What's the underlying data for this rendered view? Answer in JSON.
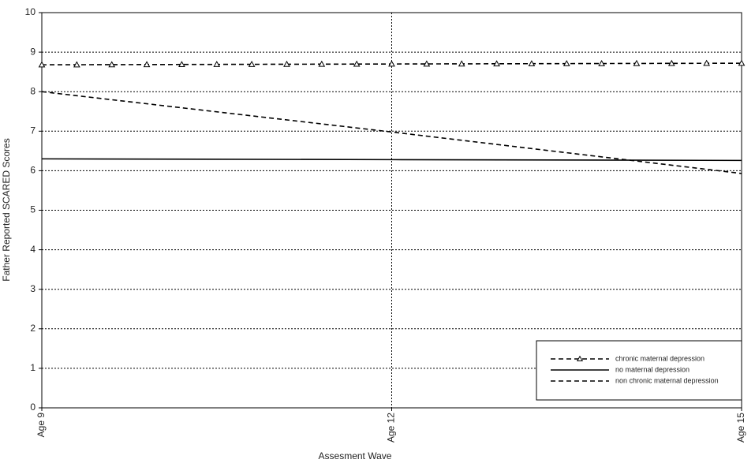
{
  "chart_data": {
    "type": "line",
    "x_label": "Assesment Wave",
    "y_label": "Father Reported SCARED Scores",
    "xlim": [
      9,
      15
    ],
    "xticks": [
      {
        "value": 9,
        "label": "Age 9"
      },
      {
        "value": 12,
        "label": "Age 12"
      },
      {
        "value": 15,
        "label": "Age 15"
      }
    ],
    "ylim": [
      0,
      10
    ],
    "yticks": [
      0,
      1,
      2,
      3,
      4,
      5,
      6,
      7,
      8,
      9,
      10
    ],
    "grid": true,
    "legend_position": "lower right",
    "series": [
      {
        "name": "chronic maternal depression",
        "color": "#000000",
        "linestyle": "dashed",
        "marker": "triangle",
        "x": [
          9,
          9.3,
          9.6,
          9.9,
          10.2,
          10.5,
          10.8,
          11.1,
          11.4,
          11.7,
          12,
          12.3,
          12.6,
          12.9,
          13.2,
          13.5,
          13.8,
          14.1,
          14.4,
          14.7,
          15
        ],
        "values": [
          8.68,
          8.682,
          8.684,
          8.686,
          8.688,
          8.69,
          8.692,
          8.694,
          8.696,
          8.698,
          8.7,
          8.702,
          8.704,
          8.706,
          8.708,
          8.71,
          8.712,
          8.714,
          8.716,
          8.718,
          8.72
        ]
      },
      {
        "name": "no maternal depression",
        "color": "#000000",
        "linestyle": "solid",
        "marker": "none",
        "x": [
          9,
          12,
          15
        ],
        "values": [
          6.3,
          6.28,
          6.26
        ]
      },
      {
        "name": "non chronic maternal depression",
        "color": "#000000",
        "linestyle": "dashed",
        "marker": "none",
        "x": [
          9,
          12,
          15
        ],
        "values": [
          8.0,
          6.98,
          5.93
        ]
      }
    ]
  }
}
